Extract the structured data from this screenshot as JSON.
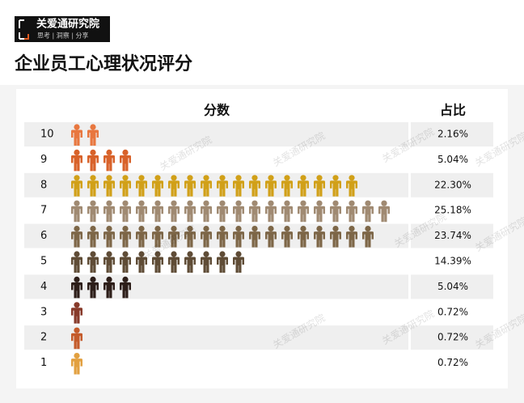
{
  "brand": {
    "name": "关爱通研究院",
    "tagline": "思考 | 洞察 | 分享"
  },
  "chart_data": {
    "type": "pictograph",
    "title": "企业员工心理状况评分",
    "category_header": "分数",
    "value_header": "占比",
    "categories": [
      "10",
      "9",
      "8",
      "7",
      "6",
      "5",
      "4",
      "3",
      "2",
      "1"
    ],
    "icon_counts": [
      2,
      4,
      18,
      20,
      19,
      11,
      4,
      1,
      1,
      1
    ],
    "values": [
      2.16,
      5.04,
      22.3,
      25.18,
      23.74,
      14.39,
      5.04,
      0.72,
      0.72,
      0.72
    ],
    "value_labels": [
      "2.16%",
      "5.04%",
      "22.30%",
      "25.18%",
      "23.74%",
      "14.39%",
      "5.04%",
      "0.72%",
      "0.72%",
      "0.72%"
    ],
    "colors": [
      "#e8773f",
      "#d8622a",
      "#d1a018",
      "#a08a72",
      "#7d6647",
      "#5f4c36",
      "#2d1e19",
      "#873a2a",
      "#c45a2a",
      "#e2a040"
    ]
  }
}
